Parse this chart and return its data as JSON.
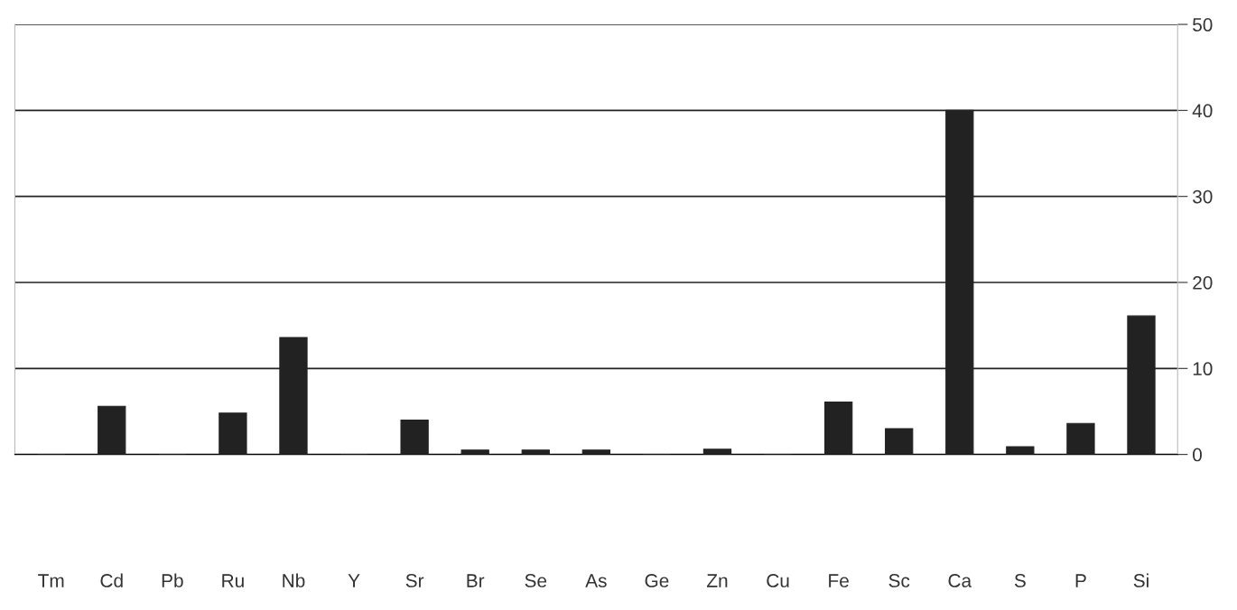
{
  "chart_data": {
    "type": "bar",
    "categories": [
      "Tm",
      "Cd",
      "Pb",
      "Ru",
      "Nb",
      "Y",
      "Sr",
      "Br",
      "Se",
      "As",
      "Ge",
      "Zn",
      "Cu",
      "Fe",
      "Sc",
      "Ca",
      "S",
      "P",
      "Si"
    ],
    "values": [
      0,
      5.6,
      0,
      4.8,
      13.6,
      0,
      4.0,
      0.5,
      0.5,
      0.5,
      0,
      0.6,
      0,
      6.1,
      3.0,
      40.0,
      0.9,
      3.6,
      16.1
    ],
    "color": "#222222",
    "ylim": [
      0,
      50
    ],
    "yticks": [
      0,
      10,
      20,
      30,
      40,
      50
    ],
    "grid": "y"
  }
}
